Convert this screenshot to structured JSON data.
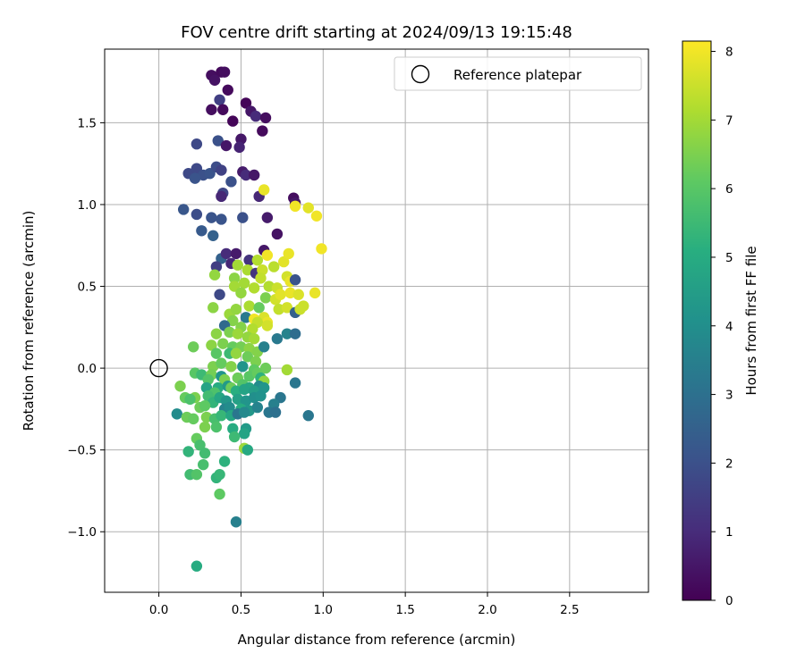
{
  "chart_data": {
    "type": "scatter",
    "title": "FOV centre drift starting at 2024/09/13 19:15:48",
    "xlabel": "Angular distance from reference (arcmin)",
    "ylabel": "Rotation from reference (arcmin)",
    "xlim": [
      -0.33,
      2.98
    ],
    "ylim": [
      -1.37,
      1.95
    ],
    "xticks": [
      0.0,
      0.5,
      1.0,
      1.5,
      2.0,
      2.5
    ],
    "xtick_labels": [
      "0.0",
      "0.5",
      "1.0",
      "1.5",
      "2.0",
      "2.5"
    ],
    "yticks": [
      -1.0,
      -0.5,
      0.0,
      0.5,
      1.0,
      1.5
    ],
    "ytick_labels": [
      "−1.0",
      "−0.5",
      "0.0",
      "0.5",
      "1.0",
      "1.5"
    ],
    "grid": true,
    "legend": {
      "placement": "top-right",
      "entries": [
        "Reference platepar"
      ]
    },
    "reference_point": {
      "x": 0.0,
      "y": 0.0
    },
    "colorbar": {
      "label": "Hours from first FF file",
      "colormap": "viridis",
      "range": [
        0,
        8.15
      ],
      "ticks": [
        0,
        1,
        2,
        3,
        4,
        5,
        6,
        7,
        8
      ],
      "tick_labels": [
        "0",
        "1",
        "2",
        "3",
        "4",
        "5",
        "6",
        "7",
        "8"
      ]
    },
    "points": [
      [
        0.32,
        1.79,
        0.3
      ],
      [
        0.38,
        1.81,
        0.2
      ],
      [
        0.4,
        1.81,
        0.3
      ],
      [
        0.34,
        1.76,
        0.4
      ],
      [
        0.42,
        1.7,
        0.2
      ],
      [
        0.37,
        1.64,
        1.5
      ],
      [
        0.53,
        1.62,
        0.1
      ],
      [
        0.56,
        1.57,
        0.5
      ],
      [
        0.32,
        1.58,
        0.3
      ],
      [
        0.39,
        1.58,
        0.2
      ],
      [
        0.59,
        1.54,
        1.0
      ],
      [
        0.65,
        1.53,
        0.3
      ],
      [
        0.45,
        1.51,
        0.1
      ],
      [
        0.63,
        1.45,
        0.2
      ],
      [
        0.23,
        1.37,
        1.8
      ],
      [
        0.36,
        1.39,
        2.0
      ],
      [
        0.41,
        1.36,
        0.5
      ],
      [
        0.5,
        1.4,
        0.5
      ],
      [
        0.49,
        1.35,
        0.8
      ],
      [
        0.18,
        1.19,
        1.8
      ],
      [
        0.23,
        1.22,
        1.8
      ],
      [
        0.27,
        1.18,
        2.0
      ],
      [
        0.31,
        1.19,
        2.1
      ],
      [
        0.35,
        1.23,
        1.9
      ],
      [
        0.22,
        1.16,
        2.1
      ],
      [
        0.38,
        1.21,
        1.6
      ],
      [
        0.44,
        1.14,
        2.0
      ],
      [
        0.51,
        1.2,
        0.6
      ],
      [
        0.53,
        1.18,
        1.0
      ],
      [
        0.58,
        1.18,
        0.5
      ],
      [
        0.39,
        1.07,
        1.7
      ],
      [
        0.38,
        1.05,
        0.9
      ],
      [
        0.61,
        1.05,
        0.9
      ],
      [
        0.64,
        1.09,
        7.9
      ],
      [
        0.82,
        1.04,
        0.3
      ],
      [
        0.83,
        1.01,
        0.5
      ],
      [
        0.15,
        0.97,
        2.2
      ],
      [
        0.23,
        0.94,
        1.9
      ],
      [
        0.32,
        0.92,
        2.1
      ],
      [
        0.38,
        0.91,
        2.1
      ],
      [
        0.51,
        0.92,
        2.0
      ],
      [
        0.66,
        0.92,
        0.6
      ],
      [
        0.83,
        0.99,
        8.0
      ],
      [
        0.91,
        0.98,
        7.8
      ],
      [
        0.96,
        0.93,
        8.0
      ],
      [
        0.26,
        0.84,
        2.3
      ],
      [
        0.33,
        0.81,
        2.5
      ],
      [
        0.72,
        0.82,
        0.4
      ],
      [
        0.99,
        0.73,
        8.0
      ],
      [
        0.38,
        0.67,
        2.5
      ],
      [
        0.41,
        0.7,
        1.0
      ],
      [
        0.47,
        0.7,
        0.6
      ],
      [
        0.55,
        0.66,
        1.2
      ],
      [
        0.6,
        0.66,
        7.2
      ],
      [
        0.64,
        0.72,
        0.5
      ],
      [
        0.66,
        0.69,
        8.0
      ],
      [
        0.35,
        0.62,
        1.5
      ],
      [
        0.44,
        0.64,
        0.9
      ],
      [
        0.48,
        0.63,
        7.0
      ],
      [
        0.54,
        0.6,
        7.1
      ],
      [
        0.59,
        0.58,
        1.2
      ],
      [
        0.63,
        0.6,
        7.5
      ],
      [
        0.7,
        0.62,
        7.3
      ],
      [
        0.76,
        0.65,
        7.8
      ],
      [
        0.79,
        0.7,
        7.9
      ],
      [
        0.34,
        0.57,
        6.8
      ],
      [
        0.46,
        0.55,
        6.7
      ],
      [
        0.52,
        0.52,
        7.0
      ],
      [
        0.62,
        0.55,
        7.4
      ],
      [
        0.67,
        0.5,
        7.2
      ],
      [
        0.72,
        0.49,
        7.5
      ],
      [
        0.78,
        0.56,
        7.6
      ],
      [
        0.8,
        0.53,
        7.9
      ],
      [
        0.83,
        0.54,
        2.1
      ],
      [
        0.95,
        0.46,
        7.9
      ],
      [
        0.37,
        0.45,
        1.8
      ],
      [
        0.46,
        0.5,
        7.0
      ],
      [
        0.5,
        0.46,
        6.8
      ],
      [
        0.58,
        0.49,
        7.2
      ],
      [
        0.65,
        0.43,
        6.5
      ],
      [
        0.71,
        0.42,
        7.6
      ],
      [
        0.74,
        0.45,
        7.8
      ],
      [
        0.8,
        0.46,
        7.9
      ],
      [
        0.85,
        0.45,
        7.7
      ],
      [
        0.88,
        0.38,
        7.5
      ],
      [
        0.33,
        0.37,
        6.7
      ],
      [
        0.43,
        0.33,
        6.9
      ],
      [
        0.47,
        0.36,
        6.8
      ],
      [
        0.55,
        0.38,
        7.1
      ],
      [
        0.61,
        0.37,
        6.2
      ],
      [
        0.73,
        0.36,
        7.4
      ],
      [
        0.78,
        0.37,
        7.6
      ],
      [
        0.83,
        0.34,
        2.5
      ],
      [
        0.86,
        0.36,
        7.5
      ],
      [
        0.45,
        0.29,
        6.6
      ],
      [
        0.53,
        0.31,
        3.3
      ],
      [
        0.58,
        0.3,
        8.0
      ],
      [
        0.64,
        0.31,
        7.7
      ],
      [
        0.66,
        0.28,
        7.9
      ],
      [
        0.6,
        0.28,
        7.4
      ],
      [
        0.4,
        0.26,
        2.8
      ],
      [
        0.5,
        0.25,
        6.6
      ],
      [
        0.57,
        0.24,
        7.2
      ],
      [
        0.66,
        0.26,
        7.6
      ],
      [
        0.35,
        0.21,
        6.7
      ],
      [
        0.43,
        0.22,
        6.5
      ],
      [
        0.48,
        0.21,
        6.9
      ],
      [
        0.54,
        0.19,
        6.8
      ],
      [
        0.58,
        0.18,
        7.0
      ],
      [
        0.78,
        0.21,
        3.6
      ],
      [
        0.83,
        0.21,
        2.9
      ],
      [
        0.72,
        0.18,
        3.3
      ],
      [
        0.21,
        0.13,
        6.3
      ],
      [
        0.32,
        0.14,
        6.7
      ],
      [
        0.39,
        0.15,
        6.5
      ],
      [
        0.45,
        0.13,
        6.2
      ],
      [
        0.5,
        0.13,
        6.4
      ],
      [
        0.55,
        0.12,
        6.7
      ],
      [
        0.6,
        0.1,
        6.6
      ],
      [
        0.64,
        0.13,
        3.5
      ],
      [
        0.35,
        0.09,
        6.0
      ],
      [
        0.43,
        0.09,
        5.5
      ],
      [
        0.47,
        0.09,
        6.8
      ],
      [
        0.54,
        0.07,
        6.3
      ],
      [
        0.59,
        0.04,
        6.5
      ],
      [
        0.33,
        0.01,
        6.5
      ],
      [
        0.38,
        0.03,
        6.2
      ],
      [
        0.44,
        0.01,
        6.6
      ],
      [
        0.51,
        0.01,
        4.2
      ],
      [
        0.58,
        -0.01,
        6.1
      ],
      [
        0.65,
        0.0,
        6.3
      ],
      [
        0.78,
        -0.01,
        7.0
      ],
      [
        0.22,
        -0.03,
        6.0
      ],
      [
        0.26,
        -0.04,
        5.5
      ],
      [
        0.32,
        -0.04,
        6.4
      ],
      [
        0.3,
        -0.07,
        5.9
      ],
      [
        0.38,
        -0.05,
        4.2
      ],
      [
        0.4,
        -0.07,
        6.5
      ],
      [
        0.48,
        -0.06,
        6.3
      ],
      [
        0.55,
        -0.05,
        6.0
      ],
      [
        0.6,
        -0.03,
        6.2
      ],
      [
        0.62,
        -0.06,
        5.2
      ],
      [
        0.64,
        -0.08,
        6.8
      ],
      [
        0.83,
        -0.09,
        3.2
      ],
      [
        0.13,
        -0.11,
        6.5
      ],
      [
        0.29,
        -0.12,
        4.7
      ],
      [
        0.36,
        -0.12,
        5.0
      ],
      [
        0.42,
        -0.11,
        4.4
      ],
      [
        0.44,
        -0.12,
        6.3
      ],
      [
        0.51,
        -0.1,
        5.9
      ],
      [
        0.55,
        -0.12,
        4.8
      ],
      [
        0.61,
        -0.11,
        3.9
      ],
      [
        0.34,
        -0.15,
        5.8
      ],
      [
        0.47,
        -0.14,
        5.1
      ],
      [
        0.52,
        -0.13,
        4.7
      ],
      [
        0.58,
        -0.14,
        4.5
      ],
      [
        0.64,
        -0.12,
        4.2
      ],
      [
        0.74,
        -0.18,
        3.2
      ],
      [
        0.16,
        -0.18,
        6.2
      ],
      [
        0.22,
        -0.18,
        6.5
      ],
      [
        0.3,
        -0.17,
        5.6
      ],
      [
        0.33,
        -0.21,
        5.3
      ],
      [
        0.37,
        -0.18,
        4.8
      ],
      [
        0.41,
        -0.2,
        4.3
      ],
      [
        0.48,
        -0.19,
        4.6
      ],
      [
        0.53,
        -0.2,
        4.2
      ],
      [
        0.58,
        -0.18,
        4.0
      ],
      [
        0.62,
        -0.17,
        4.1
      ],
      [
        0.7,
        -0.22,
        3.5
      ],
      [
        0.19,
        -0.19,
        5.8
      ],
      [
        0.25,
        -0.24,
        6.3
      ],
      [
        0.28,
        -0.23,
        6.1
      ],
      [
        0.4,
        -0.25,
        3.6
      ],
      [
        0.43,
        -0.24,
        3.9
      ],
      [
        0.5,
        -0.25,
        5.0
      ],
      [
        0.55,
        -0.26,
        4.3
      ],
      [
        0.6,
        -0.24,
        3.6
      ],
      [
        0.67,
        -0.27,
        3.2
      ],
      [
        0.71,
        -0.27,
        3.0
      ],
      [
        0.11,
        -0.28,
        3.9
      ],
      [
        0.17,
        -0.3,
        6.3
      ],
      [
        0.21,
        -0.31,
        6.2
      ],
      [
        0.29,
        -0.3,
        6.5
      ],
      [
        0.34,
        -0.31,
        5.7
      ],
      [
        0.38,
        -0.29,
        5.4
      ],
      [
        0.44,
        -0.29,
        4.8
      ],
      [
        0.48,
        -0.28,
        3.2
      ],
      [
        0.52,
        -0.27,
        3.8
      ],
      [
        0.91,
        -0.29,
        3.2
      ],
      [
        0.28,
        -0.36,
        6.5
      ],
      [
        0.35,
        -0.36,
        5.8
      ],
      [
        0.45,
        -0.37,
        5.0
      ],
      [
        0.53,
        -0.37,
        4.4
      ],
      [
        0.52,
        -0.4,
        4.7
      ],
      [
        0.23,
        -0.43,
        6.2
      ],
      [
        0.46,
        -0.42,
        5.5
      ],
      [
        0.25,
        -0.47,
        5.7
      ],
      [
        0.18,
        -0.51,
        5.3
      ],
      [
        0.28,
        -0.52,
        5.6
      ],
      [
        0.52,
        -0.49,
        6.9
      ],
      [
        0.54,
        -0.5,
        4.9
      ],
      [
        0.4,
        -0.57,
        5.2
      ],
      [
        0.27,
        -0.59,
        5.7
      ],
      [
        0.19,
        -0.65,
        5.6
      ],
      [
        0.23,
        -0.65,
        5.9
      ],
      [
        0.35,
        -0.67,
        5.3
      ],
      [
        0.37,
        -0.65,
        5.4
      ],
      [
        0.37,
        -0.77,
        6.1
      ],
      [
        0.47,
        -0.94,
        3.5
      ],
      [
        0.23,
        -1.21,
        5.0
      ]
    ]
  }
}
